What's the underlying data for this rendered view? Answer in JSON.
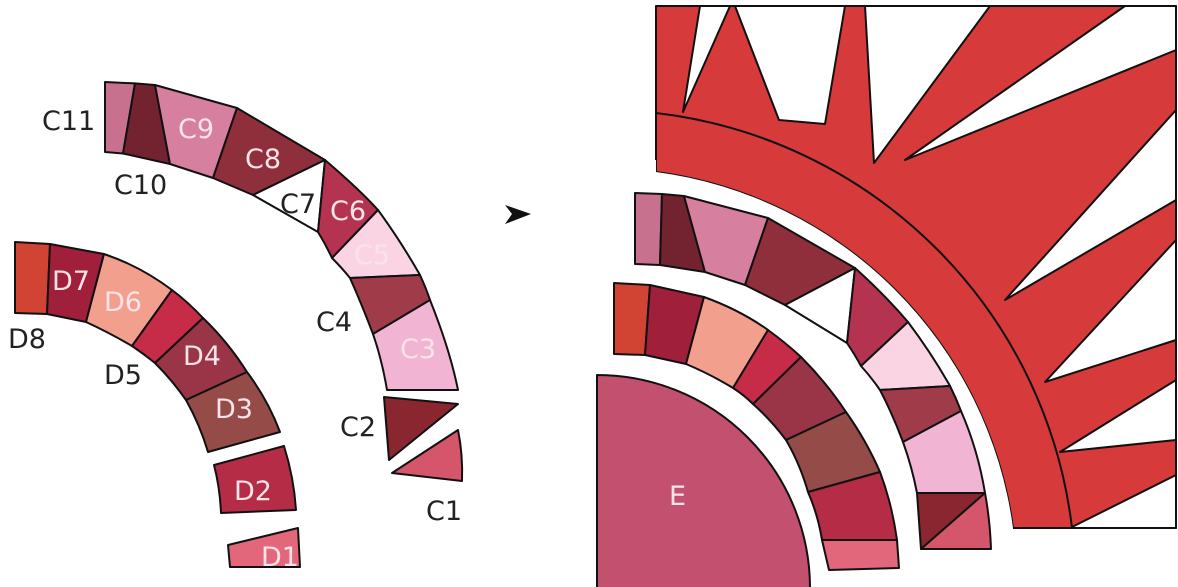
{
  "diagram": {
    "arrow_icon": "arrowhead-right-icon",
    "colors": {
      "red": "#d63a3a",
      "outline": "#111111",
      "white": "#ffffff"
    },
    "pieces": {
      "C1": {
        "label": "C1",
        "color": "#d5566a"
      },
      "C2": {
        "label": "C2",
        "color": "#8a2630"
      },
      "C3": {
        "label": "C3",
        "color": "#f1b4d3"
      },
      "C4": {
        "label": "C4",
        "color": "#a03c49"
      },
      "C5": {
        "label": "C5",
        "color": "#fbd4e3"
      },
      "C6": {
        "label": "C6",
        "color": "#b43350"
      },
      "C7": {
        "label": "C7",
        "color": "#ffffff"
      },
      "C8": {
        "label": "C8",
        "color": "#8f2f3b"
      },
      "C9": {
        "label": "C9",
        "color": "#d67f9e"
      },
      "C10": {
        "label": "C10",
        "color": "#72232f"
      },
      "C11": {
        "label": "C11",
        "color": "#c8718e"
      },
      "D1": {
        "label": "D1",
        "color": "#e3677a"
      },
      "D2": {
        "label": "D2",
        "color": "#b42c45"
      },
      "D3": {
        "label": "D3",
        "color": "#954b47"
      },
      "D4": {
        "label": "D4",
        "color": "#9a3447"
      },
      "D5": {
        "label": "D5",
        "color": "#c62b47"
      },
      "D6": {
        "label": "D6",
        "color": "#f39f8d"
      },
      "D7": {
        "label": "D7",
        "color": "#a01f3a"
      },
      "D8": {
        "label": "D8",
        "color": "#d14433"
      },
      "E": {
        "label": "E",
        "color": "#c4506f"
      }
    }
  }
}
